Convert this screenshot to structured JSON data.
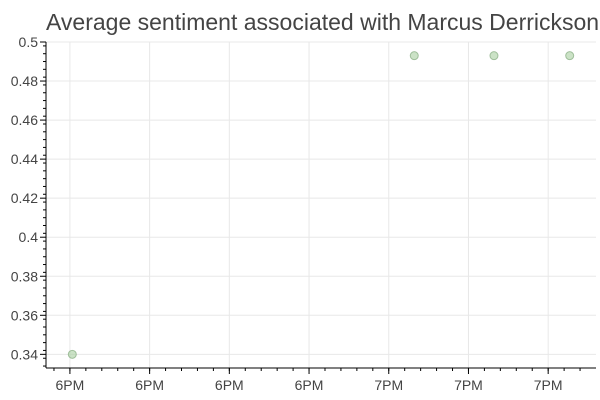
{
  "chart_data": {
    "type": "scatter",
    "title": "Average sentiment associated with Marcus Derrickson",
    "xlabel": "",
    "ylabel": "",
    "x_tick_labels": [
      "6PM",
      "6PM",
      "6PM",
      "6PM",
      "7PM",
      "7PM",
      "7PM"
    ],
    "y_tick_labels": [
      "0.34",
      "0.36",
      "0.38",
      "0.4",
      "0.42",
      "0.44",
      "0.46",
      "0.48",
      "0.5"
    ],
    "y_ticks": [
      0.34,
      0.36,
      0.38,
      0.4,
      0.42,
      0.44,
      0.46,
      0.48,
      0.5
    ],
    "ylim": [
      0.333,
      0.5
    ],
    "x_ticks": [
      0,
      1,
      2,
      3,
      4,
      5,
      6
    ],
    "xlim": [
      -0.3,
      6.6
    ],
    "points": [
      {
        "x": 0.03,
        "y": 0.34
      },
      {
        "x": 4.32,
        "y": 0.493
      },
      {
        "x": 5.32,
        "y": 0.493
      },
      {
        "x": 6.27,
        "y": 0.493
      }
    ],
    "point_color": "#a8cfa0",
    "point_stroke": "#8fb38a",
    "grid": true
  }
}
